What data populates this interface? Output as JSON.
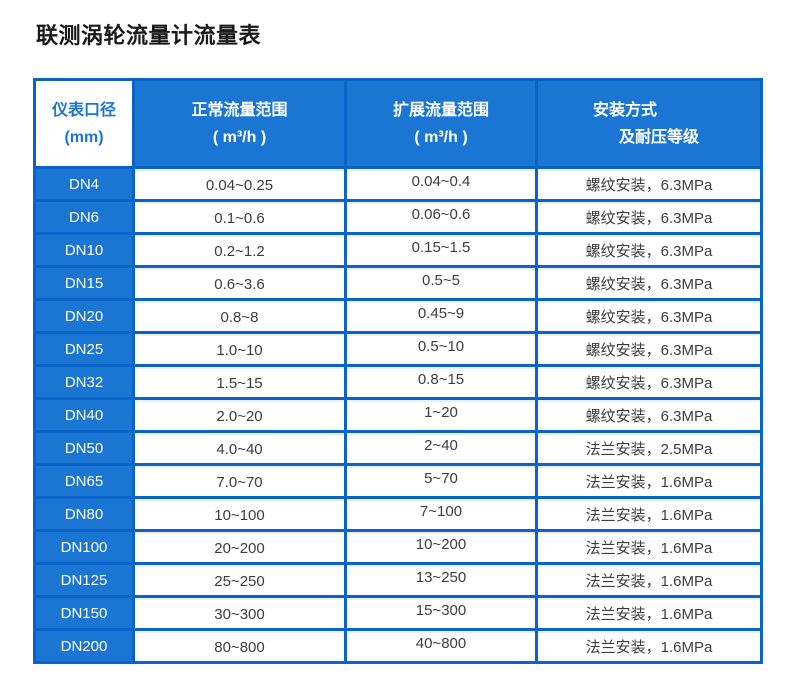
{
  "chart_data": {
    "type": "table",
    "title": "联测涡轮流量计流量表",
    "columns": [
      {
        "line1": "仪表口径",
        "line2": "(mm)"
      },
      {
        "line1": "正常流量范围",
        "line2": "( m³/h )"
      },
      {
        "line1": "扩展流量范围",
        "line2": "( m³/h )"
      },
      {
        "line1": "安装方式",
        "line2": "及耐压等级"
      }
    ],
    "rows": [
      [
        "DN4",
        "0.04~0.25",
        "0.04~0.4",
        "螺纹安装，6.3MPa"
      ],
      [
        "DN6",
        "0.1~0.6",
        "0.06~0.6",
        "螺纹安装，6.3MPa"
      ],
      [
        "DN10",
        "0.2~1.2",
        "0.15~1.5",
        "螺纹安装，6.3MPa"
      ],
      [
        "DN15",
        "0.6~3.6",
        "0.5~5",
        "螺纹安装，6.3MPa"
      ],
      [
        "DN20",
        "0.8~8",
        "0.45~9",
        "螺纹安装，6.3MPa"
      ],
      [
        "DN25",
        "1.0~10",
        "0.5~10",
        "螺纹安装，6.3MPa"
      ],
      [
        "DN32",
        "1.5~15",
        "0.8~15",
        "螺纹安装，6.3MPa"
      ],
      [
        "DN40",
        "2.0~20",
        "1~20",
        "螺纹安装，6.3MPa"
      ],
      [
        "DN50",
        "4.0~40",
        "2~40",
        "法兰安装，2.5MPa"
      ],
      [
        "DN65",
        "7.0~70",
        "5~70",
        "法兰安装，1.6MPa"
      ],
      [
        "DN80",
        "10~100",
        "7~100",
        "法兰安装，1.6MPa"
      ],
      [
        "DN100",
        "20~200",
        "10~200",
        "法兰安装，1.6MPa"
      ],
      [
        "DN125",
        "25~250",
        "13~250",
        "法兰安装，1.6MPa"
      ],
      [
        "DN150",
        "30~300",
        "15~300",
        "法兰安装，1.6MPa"
      ],
      [
        "DN200",
        "80~800",
        "40~800",
        "法兰安装，1.6MPa"
      ]
    ]
  },
  "colors": {
    "fill_blue": "#1a76d2",
    "grid_blue": "#0a64c8",
    "cell_text": "#3d3d3d",
    "header_text": "#ffffff",
    "title_text": "#1a1a1a",
    "page_bg": "#ffffff"
  }
}
